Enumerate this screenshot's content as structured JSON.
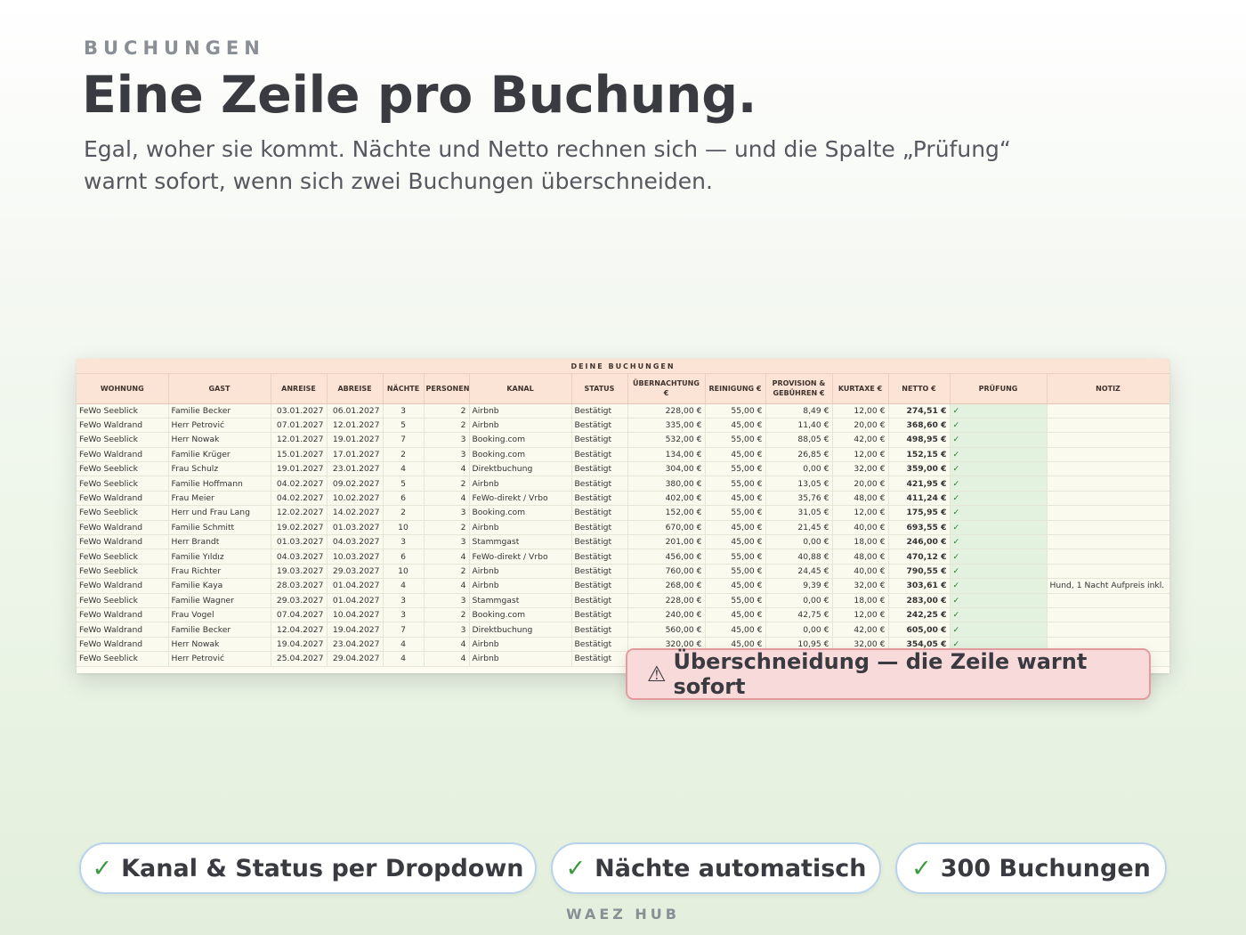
{
  "header": {
    "eyebrow": "BUCHUNGEN",
    "headline": "Eine Zeile pro Buchung.",
    "subline": "Egal, woher sie kommt. Nächte und Netto rechnen sich — und die Spalte „Prüfung“ warnt sofort, wenn sich zwei Buchungen überschneiden."
  },
  "sheet": {
    "title": "DEINE BUCHUNGEN",
    "columns": [
      "WOHNUNG",
      "GAST",
      "ANREISE",
      "ABREISE",
      "NÄCHTE",
      "PERSONEN",
      "KANAL",
      "STATUS",
      "ÜBERNACHTUNG €",
      "REINIGUNG €",
      "PROVISION & GEBÜHREN €",
      "KURTAXE €",
      "NETTO €",
      "PRÜFUNG",
      "NOTIZ"
    ],
    "check_mark": "✓",
    "rows": [
      [
        "FeWo Seeblick",
        "Familie Becker",
        "03.01.2027",
        "06.01.2027",
        "3",
        "2",
        "Airbnb",
        "Bestätigt",
        "228,00 €",
        "55,00 €",
        "8,49 €",
        "12,00 €",
        "274,51 €",
        "✓",
        ""
      ],
      [
        "FeWo Waldrand",
        "Herr Petrović",
        "07.01.2027",
        "12.01.2027",
        "5",
        "2",
        "Airbnb",
        "Bestätigt",
        "335,00 €",
        "45,00 €",
        "11,40 €",
        "20,00 €",
        "368,60 €",
        "✓",
        ""
      ],
      [
        "FeWo Seeblick",
        "Herr Nowak",
        "12.01.2027",
        "19.01.2027",
        "7",
        "3",
        "Booking.com",
        "Bestätigt",
        "532,00 €",
        "55,00 €",
        "88,05 €",
        "42,00 €",
        "498,95 €",
        "✓",
        ""
      ],
      [
        "FeWo Waldrand",
        "Familie Krüger",
        "15.01.2027",
        "17.01.2027",
        "2",
        "3",
        "Booking.com",
        "Bestätigt",
        "134,00 €",
        "45,00 €",
        "26,85 €",
        "12,00 €",
        "152,15 €",
        "✓",
        ""
      ],
      [
        "FeWo Seeblick",
        "Frau Schulz",
        "19.01.2027",
        "23.01.2027",
        "4",
        "4",
        "Direktbuchung",
        "Bestätigt",
        "304,00 €",
        "55,00 €",
        "0,00 €",
        "32,00 €",
        "359,00 €",
        "✓",
        ""
      ],
      [
        "FeWo Seeblick",
        "Familie Hoffmann",
        "04.02.2027",
        "09.02.2027",
        "5",
        "2",
        "Airbnb",
        "Bestätigt",
        "380,00 €",
        "55,00 €",
        "13,05 €",
        "20,00 €",
        "421,95 €",
        "✓",
        ""
      ],
      [
        "FeWo Waldrand",
        "Frau Meier",
        "04.02.2027",
        "10.02.2027",
        "6",
        "4",
        "FeWo-direkt / Vrbo",
        "Bestätigt",
        "402,00 €",
        "45,00 €",
        "35,76 €",
        "48,00 €",
        "411,24 €",
        "✓",
        ""
      ],
      [
        "FeWo Seeblick",
        "Herr und Frau Lang",
        "12.02.2027",
        "14.02.2027",
        "2",
        "3",
        "Booking.com",
        "Bestätigt",
        "152,00 €",
        "55,00 €",
        "31,05 €",
        "12,00 €",
        "175,95 €",
        "✓",
        ""
      ],
      [
        "FeWo Waldrand",
        "Familie Schmitt",
        "19.02.2027",
        "01.03.2027",
        "10",
        "2",
        "Airbnb",
        "Bestätigt",
        "670,00 €",
        "45,00 €",
        "21,45 €",
        "40,00 €",
        "693,55 €",
        "✓",
        ""
      ],
      [
        "FeWo Waldrand",
        "Herr Brandt",
        "01.03.2027",
        "04.03.2027",
        "3",
        "3",
        "Stammgast",
        "Bestätigt",
        "201,00 €",
        "45,00 €",
        "0,00 €",
        "18,00 €",
        "246,00 €",
        "✓",
        ""
      ],
      [
        "FeWo Seeblick",
        "Familie Yıldız",
        "04.03.2027",
        "10.03.2027",
        "6",
        "4",
        "FeWo-direkt / Vrbo",
        "Bestätigt",
        "456,00 €",
        "55,00 €",
        "40,88 €",
        "48,00 €",
        "470,12 €",
        "✓",
        ""
      ],
      [
        "FeWo Seeblick",
        "Frau Richter",
        "19.03.2027",
        "29.03.2027",
        "10",
        "2",
        "Airbnb",
        "Bestätigt",
        "760,00 €",
        "55,00 €",
        "24,45 €",
        "40,00 €",
        "790,55 €",
        "✓",
        ""
      ],
      [
        "FeWo Waldrand",
        "Familie Kaya",
        "28.03.2027",
        "01.04.2027",
        "4",
        "4",
        "Airbnb",
        "Bestätigt",
        "268,00 €",
        "45,00 €",
        "9,39 €",
        "32,00 €",
        "303,61 €",
        "✓",
        "Hund, 1 Nacht Aufpreis inkl."
      ],
      [
        "FeWo Seeblick",
        "Familie Wagner",
        "29.03.2027",
        "01.04.2027",
        "3",
        "3",
        "Stammgast",
        "Bestätigt",
        "228,00 €",
        "55,00 €",
        "0,00 €",
        "18,00 €",
        "283,00 €",
        "✓",
        ""
      ],
      [
        "FeWo Waldrand",
        "Frau Vogel",
        "07.04.2027",
        "10.04.2027",
        "3",
        "2",
        "Booking.com",
        "Bestätigt",
        "240,00 €",
        "45,00 €",
        "42,75 €",
        "12,00 €",
        "242,25 €",
        "✓",
        ""
      ],
      [
        "FeWo Waldrand",
        "Familie Becker",
        "12.04.2027",
        "19.04.2027",
        "7",
        "3",
        "Direktbuchung",
        "Bestätigt",
        "560,00 €",
        "45,00 €",
        "0,00 €",
        "42,00 €",
        "605,00 €",
        "✓",
        ""
      ],
      [
        "FeWo Waldrand",
        "Herr Nowak",
        "19.04.2027",
        "23.04.2027",
        "4",
        "4",
        "Airbnb",
        "Bestätigt",
        "320,00 €",
        "45,00 €",
        "10,95 €",
        "32,00 €",
        "354,05 €",
        "✓",
        ""
      ],
      [
        "FeWo Seeblick",
        "Herr Petrović",
        "25.04.2027",
        "29.04.2027",
        "4",
        "4",
        "Airbnb",
        "Bestätigt",
        "",
        "",
        "",
        "",
        "",
        "",
        ""
      ]
    ]
  },
  "warning": {
    "icon": "⚠",
    "text": "Überschneidung — die Zeile warnt sofort"
  },
  "pills": [
    {
      "check": "✓",
      "label": "Kanal & Status per Dropdown"
    },
    {
      "check": "✓",
      "label": "Nächte automatisch"
    },
    {
      "check": "✓",
      "label": "300 Buchungen"
    }
  ],
  "footer": "WAEZ HUB",
  "colors": {
    "header_bg": "#fbe3d6",
    "row_bg": "#fafbee",
    "check_bg": "#e3f1df",
    "warning_bg": "#f9dadb",
    "warning_border": "#e39b9e",
    "pill_border": "#b8d2ec",
    "check_color": "#3a9a3e"
  }
}
